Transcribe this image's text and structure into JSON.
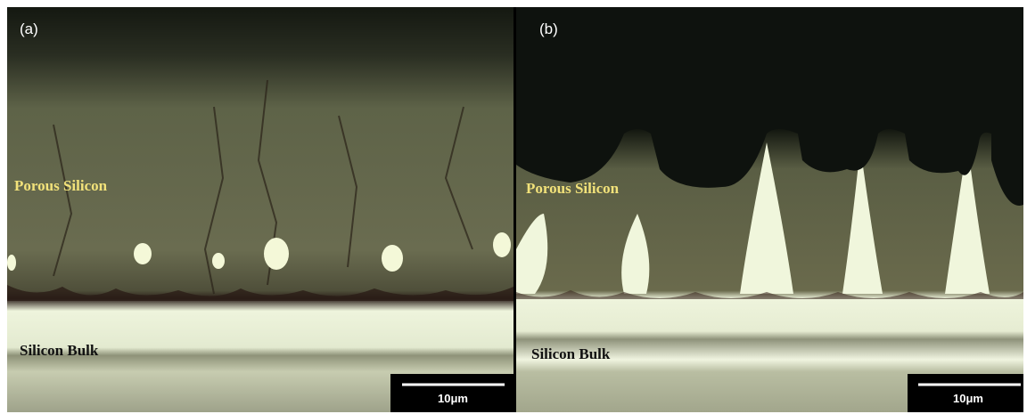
{
  "panels": [
    {
      "label": "(a)",
      "porous_label": "Porous Silicon",
      "bulk_label": "Silicon Bulk",
      "scale_bar": "10μm"
    },
    {
      "label": "(b)",
      "porous_label": "Porous Silicon",
      "bulk_label": "Silicon Bulk",
      "scale_bar": "10μm"
    }
  ]
}
